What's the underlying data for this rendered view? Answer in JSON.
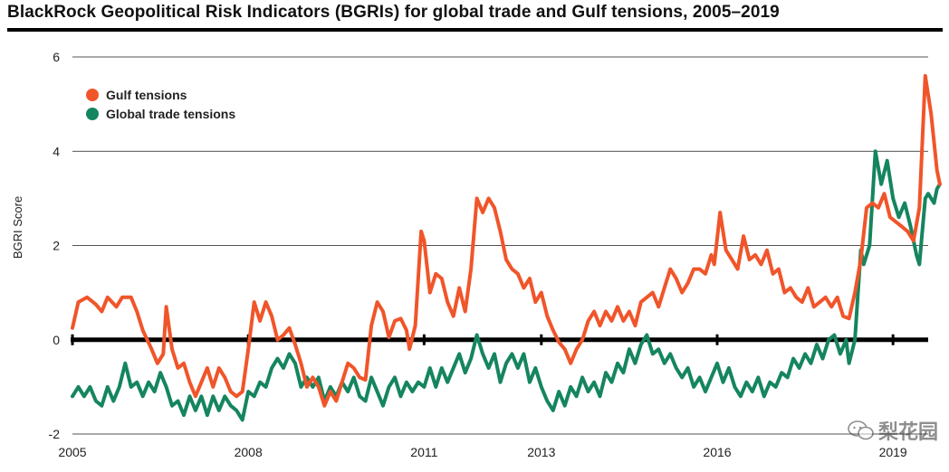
{
  "title": "BlackRock Geopolitical Risk Indicators (BGRIs) for global trade and Gulf tensions, 2005–2019",
  "watermark": {
    "text": "梨花园",
    "icon": "wechat-icon"
  },
  "chart_data": {
    "type": "line",
    "title": "BlackRock Geopolitical Risk Indicators (BGRIs) for global trade and Gulf tensions, 2005–2019",
    "xlabel": "",
    "ylabel": "BGRI Score",
    "xlim": [
      2005,
      2019.6
    ],
    "ylim": [
      -2,
      6
    ],
    "x_ticks": [
      2005,
      2008,
      2011,
      2013,
      2016,
      2019
    ],
    "x_tick_labels": [
      "2005",
      "2008",
      "2011",
      "2013",
      "2016",
      "2019"
    ],
    "y_ticks": [
      -2,
      0,
      2,
      4,
      6
    ],
    "y_tick_labels": [
      "-2",
      "0",
      "2",
      "4",
      "6"
    ],
    "grid": "horizontal",
    "legend": "top-left",
    "series": [
      {
        "name": "Gulf tensions",
        "color": "#f0552a",
        "points": [
          [
            2005.0,
            0.25
          ],
          [
            2005.1,
            0.8
          ],
          [
            2005.25,
            0.9
          ],
          [
            2005.4,
            0.75
          ],
          [
            2005.5,
            0.6
          ],
          [
            2005.6,
            0.9
          ],
          [
            2005.75,
            0.7
          ],
          [
            2005.85,
            0.9
          ],
          [
            2006.0,
            0.9
          ],
          [
            2006.1,
            0.6
          ],
          [
            2006.2,
            0.2
          ],
          [
            2006.35,
            -0.2
          ],
          [
            2006.45,
            -0.5
          ],
          [
            2006.55,
            -0.3
          ],
          [
            2006.6,
            0.7
          ],
          [
            2006.7,
            -0.2
          ],
          [
            2006.8,
            -0.6
          ],
          [
            2006.9,
            -0.5
          ],
          [
            2007.0,
            -0.9
          ],
          [
            2007.1,
            -1.2
          ],
          [
            2007.2,
            -0.9
          ],
          [
            2007.3,
            -0.6
          ],
          [
            2007.4,
            -1.0
          ],
          [
            2007.5,
            -0.6
          ],
          [
            2007.6,
            -0.8
          ],
          [
            2007.7,
            -1.1
          ],
          [
            2007.8,
            -1.2
          ],
          [
            2007.9,
            -1.1
          ],
          [
            2008.0,
            -0.2
          ],
          [
            2008.1,
            0.8
          ],
          [
            2008.2,
            0.4
          ],
          [
            2008.3,
            0.8
          ],
          [
            2008.4,
            0.5
          ],
          [
            2008.5,
            0.0
          ],
          [
            2008.6,
            0.1
          ],
          [
            2008.7,
            0.25
          ],
          [
            2008.8,
            -0.1
          ],
          [
            2008.9,
            -0.5
          ],
          [
            2009.0,
            -1.0
          ],
          [
            2009.1,
            -0.8
          ],
          [
            2009.2,
            -1.0
          ],
          [
            2009.3,
            -1.4
          ],
          [
            2009.4,
            -1.1
          ],
          [
            2009.5,
            -1.3
          ],
          [
            2009.6,
            -0.9
          ],
          [
            2009.7,
            -0.5
          ],
          [
            2009.8,
            -0.6
          ],
          [
            2009.9,
            -0.8
          ],
          [
            2010.0,
            -0.85
          ],
          [
            2010.1,
            0.3
          ],
          [
            2010.2,
            0.8
          ],
          [
            2010.3,
            0.6
          ],
          [
            2010.4,
            0.05
          ],
          [
            2010.5,
            0.4
          ],
          [
            2010.6,
            0.45
          ],
          [
            2010.7,
            0.2
          ],
          [
            2010.75,
            -0.2
          ],
          [
            2010.85,
            0.3
          ],
          [
            2010.95,
            2.3
          ],
          [
            2011.0,
            2.1
          ],
          [
            2011.1,
            1.0
          ],
          [
            2011.2,
            1.4
          ],
          [
            2011.3,
            1.3
          ],
          [
            2011.4,
            0.8
          ],
          [
            2011.5,
            0.5
          ],
          [
            2011.6,
            1.1
          ],
          [
            2011.7,
            0.6
          ],
          [
            2011.8,
            1.5
          ],
          [
            2011.9,
            3.0
          ],
          [
            2012.0,
            2.7
          ],
          [
            2012.1,
            3.0
          ],
          [
            2012.2,
            2.8
          ],
          [
            2012.3,
            2.3
          ],
          [
            2012.4,
            1.7
          ],
          [
            2012.5,
            1.5
          ],
          [
            2012.6,
            1.4
          ],
          [
            2012.7,
            1.1
          ],
          [
            2012.8,
            1.3
          ],
          [
            2012.9,
            0.8
          ],
          [
            2013.0,
            1.0
          ],
          [
            2013.1,
            0.5
          ],
          [
            2013.2,
            0.2
          ],
          [
            2013.3,
            -0.05
          ],
          [
            2013.4,
            -0.2
          ],
          [
            2013.5,
            -0.5
          ],
          [
            2013.6,
            -0.2
          ],
          [
            2013.7,
            0.0
          ],
          [
            2013.8,
            0.4
          ],
          [
            2013.9,
            0.6
          ],
          [
            2014.0,
            0.3
          ],
          [
            2014.1,
            0.6
          ],
          [
            2014.2,
            0.4
          ],
          [
            2014.3,
            0.7
          ],
          [
            2014.4,
            0.4
          ],
          [
            2014.5,
            0.6
          ],
          [
            2014.6,
            0.3
          ],
          [
            2014.7,
            0.8
          ],
          [
            2014.8,
            0.9
          ],
          [
            2014.9,
            1.0
          ],
          [
            2015.0,
            0.7
          ],
          [
            2015.1,
            1.1
          ],
          [
            2015.2,
            1.5
          ],
          [
            2015.3,
            1.3
          ],
          [
            2015.4,
            1.0
          ],
          [
            2015.5,
            1.2
          ],
          [
            2015.6,
            1.5
          ],
          [
            2015.7,
            1.5
          ],
          [
            2015.8,
            1.4
          ],
          [
            2015.9,
            1.8
          ],
          [
            2015.95,
            1.6
          ],
          [
            2016.05,
            2.7
          ],
          [
            2016.15,
            1.9
          ],
          [
            2016.25,
            1.7
          ],
          [
            2016.35,
            1.5
          ],
          [
            2016.45,
            2.2
          ],
          [
            2016.55,
            1.7
          ],
          [
            2016.65,
            1.8
          ],
          [
            2016.75,
            1.6
          ],
          [
            2016.85,
            1.9
          ],
          [
            2016.95,
            1.4
          ],
          [
            2017.05,
            1.5
          ],
          [
            2017.15,
            1.0
          ],
          [
            2017.25,
            1.1
          ],
          [
            2017.35,
            0.9
          ],
          [
            2017.45,
            0.8
          ],
          [
            2017.55,
            1.1
          ],
          [
            2017.65,
            0.7
          ],
          [
            2017.75,
            0.8
          ],
          [
            2017.85,
            0.9
          ],
          [
            2017.95,
            0.7
          ],
          [
            2018.05,
            0.9
          ],
          [
            2018.15,
            0.5
          ],
          [
            2018.25,
            0.45
          ],
          [
            2018.35,
            1.0
          ],
          [
            2018.45,
            1.7
          ],
          [
            2018.55,
            2.8
          ],
          [
            2018.65,
            2.9
          ],
          [
            2018.75,
            2.8
          ],
          [
            2018.85,
            3.1
          ],
          [
            2018.95,
            2.6
          ],
          [
            2019.05,
            2.5
          ],
          [
            2019.15,
            2.4
          ],
          [
            2019.25,
            2.3
          ],
          [
            2019.35,
            2.1
          ],
          [
            2019.45,
            2.8
          ],
          [
            2019.55,
            5.6
          ],
          [
            2019.65,
            4.8
          ],
          [
            2019.75,
            3.6
          ],
          [
            2019.8,
            3.3
          ]
        ]
      },
      {
        "name": "Global trade tensions",
        "color": "#15855f",
        "points": [
          [
            2005.0,
            -1.2
          ],
          [
            2005.1,
            -1.0
          ],
          [
            2005.2,
            -1.2
          ],
          [
            2005.3,
            -1.0
          ],
          [
            2005.4,
            -1.3
          ],
          [
            2005.5,
            -1.4
          ],
          [
            2005.6,
            -1.0
          ],
          [
            2005.7,
            -1.3
          ],
          [
            2005.8,
            -1.0
          ],
          [
            2005.9,
            -0.5
          ],
          [
            2006.0,
            -1.0
          ],
          [
            2006.1,
            -0.9
          ],
          [
            2006.2,
            -1.2
          ],
          [
            2006.3,
            -0.9
          ],
          [
            2006.4,
            -1.1
          ],
          [
            2006.5,
            -0.7
          ],
          [
            2006.6,
            -1.0
          ],
          [
            2006.7,
            -1.4
          ],
          [
            2006.8,
            -1.3
          ],
          [
            2006.9,
            -1.6
          ],
          [
            2007.0,
            -1.2
          ],
          [
            2007.1,
            -1.5
          ],
          [
            2007.2,
            -1.2
          ],
          [
            2007.3,
            -1.6
          ],
          [
            2007.4,
            -1.2
          ],
          [
            2007.5,
            -1.5
          ],
          [
            2007.6,
            -1.2
          ],
          [
            2007.7,
            -1.4
          ],
          [
            2007.8,
            -1.5
          ],
          [
            2007.9,
            -1.7
          ],
          [
            2008.0,
            -1.1
          ],
          [
            2008.1,
            -1.2
          ],
          [
            2008.2,
            -0.9
          ],
          [
            2008.3,
            -1.0
          ],
          [
            2008.4,
            -0.6
          ],
          [
            2008.5,
            -0.4
          ],
          [
            2008.6,
            -0.6
          ],
          [
            2008.7,
            -0.3
          ],
          [
            2008.8,
            -0.5
          ],
          [
            2008.9,
            -1.0
          ],
          [
            2009.0,
            -0.8
          ],
          [
            2009.1,
            -1.0
          ],
          [
            2009.2,
            -0.8
          ],
          [
            2009.3,
            -1.3
          ],
          [
            2009.4,
            -1.0
          ],
          [
            2009.5,
            -1.2
          ],
          [
            2009.6,
            -0.9
          ],
          [
            2009.7,
            -1.1
          ],
          [
            2009.8,
            -0.8
          ],
          [
            2009.9,
            -1.2
          ],
          [
            2010.0,
            -1.3
          ],
          [
            2010.1,
            -0.8
          ],
          [
            2010.2,
            -1.1
          ],
          [
            2010.3,
            -1.4
          ],
          [
            2010.4,
            -1.0
          ],
          [
            2010.5,
            -0.8
          ],
          [
            2010.6,
            -1.2
          ],
          [
            2010.7,
            -0.9
          ],
          [
            2010.8,
            -1.1
          ],
          [
            2010.9,
            -0.9
          ],
          [
            2011.0,
            -1.0
          ],
          [
            2011.1,
            -0.6
          ],
          [
            2011.2,
            -1.0
          ],
          [
            2011.3,
            -0.6
          ],
          [
            2011.4,
            -0.9
          ],
          [
            2011.5,
            -0.6
          ],
          [
            2011.6,
            -0.3
          ],
          [
            2011.7,
            -0.7
          ],
          [
            2011.8,
            -0.4
          ],
          [
            2011.9,
            0.1
          ],
          [
            2012.0,
            -0.3
          ],
          [
            2012.1,
            -0.6
          ],
          [
            2012.2,
            -0.3
          ],
          [
            2012.3,
            -0.9
          ],
          [
            2012.4,
            -0.5
          ],
          [
            2012.5,
            -0.3
          ],
          [
            2012.6,
            -0.6
          ],
          [
            2012.7,
            -0.3
          ],
          [
            2012.8,
            -0.9
          ],
          [
            2012.9,
            -0.6
          ],
          [
            2013.0,
            -1.0
          ],
          [
            2013.1,
            -1.3
          ],
          [
            2013.2,
            -1.5
          ],
          [
            2013.3,
            -1.1
          ],
          [
            2013.4,
            -1.4
          ],
          [
            2013.5,
            -1.0
          ],
          [
            2013.6,
            -1.2
          ],
          [
            2013.7,
            -0.8
          ],
          [
            2013.8,
            -1.1
          ],
          [
            2013.9,
            -0.9
          ],
          [
            2014.0,
            -1.2
          ],
          [
            2014.1,
            -0.7
          ],
          [
            2014.2,
            -0.9
          ],
          [
            2014.3,
            -0.5
          ],
          [
            2014.4,
            -0.7
          ],
          [
            2014.5,
            -0.2
          ],
          [
            2014.6,
            -0.5
          ],
          [
            2014.7,
            -0.1
          ],
          [
            2014.8,
            0.1
          ],
          [
            2014.9,
            -0.3
          ],
          [
            2015.0,
            -0.2
          ],
          [
            2015.1,
            -0.5
          ],
          [
            2015.2,
            -0.3
          ],
          [
            2015.3,
            -0.6
          ],
          [
            2015.4,
            -0.8
          ],
          [
            2015.5,
            -0.6
          ],
          [
            2015.6,
            -1.0
          ],
          [
            2015.7,
            -0.8
          ],
          [
            2015.8,
            -1.1
          ],
          [
            2015.9,
            -0.8
          ],
          [
            2016.0,
            -0.5
          ],
          [
            2016.1,
            -0.9
          ],
          [
            2016.2,
            -0.6
          ],
          [
            2016.3,
            -1.0
          ],
          [
            2016.4,
            -1.2
          ],
          [
            2016.5,
            -0.9
          ],
          [
            2016.6,
            -1.1
          ],
          [
            2016.7,
            -0.8
          ],
          [
            2016.8,
            -1.2
          ],
          [
            2016.9,
            -0.9
          ],
          [
            2017.0,
            -1.0
          ],
          [
            2017.1,
            -0.7
          ],
          [
            2017.2,
            -0.8
          ],
          [
            2017.3,
            -0.4
          ],
          [
            2017.4,
            -0.6
          ],
          [
            2017.5,
            -0.3
          ],
          [
            2017.6,
            -0.5
          ],
          [
            2017.7,
            -0.1
          ],
          [
            2017.8,
            -0.4
          ],
          [
            2017.9,
            0.0
          ],
          [
            2018.0,
            0.1
          ],
          [
            2018.1,
            -0.3
          ],
          [
            2018.2,
            0.0
          ],
          [
            2018.25,
            -0.5
          ],
          [
            2018.35,
            0.0
          ],
          [
            2018.45,
            1.9
          ],
          [
            2018.5,
            1.6
          ],
          [
            2018.6,
            2.0
          ],
          [
            2018.7,
            4.0
          ],
          [
            2018.8,
            3.3
          ],
          [
            2018.9,
            3.8
          ],
          [
            2019.0,
            3.0
          ],
          [
            2019.1,
            2.6
          ],
          [
            2019.2,
            2.9
          ],
          [
            2019.3,
            2.4
          ],
          [
            2019.4,
            1.8
          ],
          [
            2019.45,
            1.6
          ],
          [
            2019.5,
            2.3
          ],
          [
            2019.55,
            3.0
          ],
          [
            2019.6,
            3.1
          ],
          [
            2019.7,
            2.9
          ],
          [
            2019.75,
            3.2
          ],
          [
            2019.8,
            3.3
          ]
        ]
      }
    ]
  }
}
